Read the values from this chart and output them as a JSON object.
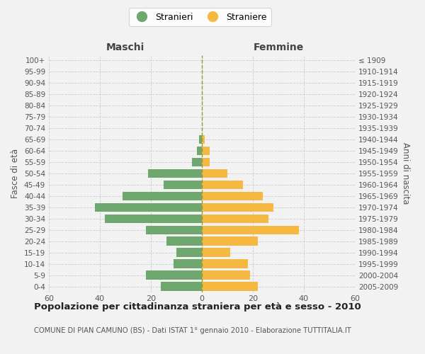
{
  "age_groups": [
    "0-4",
    "5-9",
    "10-14",
    "15-19",
    "20-24",
    "25-29",
    "30-34",
    "35-39",
    "40-44",
    "45-49",
    "50-54",
    "55-59",
    "60-64",
    "65-69",
    "70-74",
    "75-79",
    "80-84",
    "85-89",
    "90-94",
    "95-99",
    "100+"
  ],
  "birth_years": [
    "2005-2009",
    "2000-2004",
    "1995-1999",
    "1990-1994",
    "1985-1989",
    "1980-1984",
    "1975-1979",
    "1970-1974",
    "1965-1969",
    "1960-1964",
    "1955-1959",
    "1950-1954",
    "1945-1949",
    "1940-1944",
    "1935-1939",
    "1930-1934",
    "1925-1929",
    "1920-1924",
    "1915-1919",
    "1910-1914",
    "≤ 1909"
  ],
  "males": [
    16,
    22,
    11,
    10,
    14,
    22,
    38,
    42,
    31,
    15,
    21,
    4,
    2,
    1,
    0,
    0,
    0,
    0,
    0,
    0,
    0
  ],
  "females": [
    22,
    19,
    18,
    11,
    22,
    38,
    26,
    28,
    24,
    16,
    10,
    3,
    3,
    1,
    0,
    0,
    0,
    0,
    0,
    0,
    0
  ],
  "male_color": "#6ea86e",
  "female_color": "#f5b942",
  "background_color": "#f2f2f2",
  "grid_color": "#cccccc",
  "title": "Popolazione per cittadinanza straniera per età e sesso - 2010",
  "subtitle": "COMUNE DI PIAN CAMUNO (BS) - Dati ISTAT 1° gennaio 2010 - Elaborazione TUTTITALIA.IT",
  "xlabel_left": "Maschi",
  "xlabel_right": "Femmine",
  "ylabel_left": "Fasce di età",
  "ylabel_right": "Anni di nascita",
  "legend_males": "Stranieri",
  "legend_females": "Straniere",
  "xlim": 60,
  "center_line_color": "#999933"
}
